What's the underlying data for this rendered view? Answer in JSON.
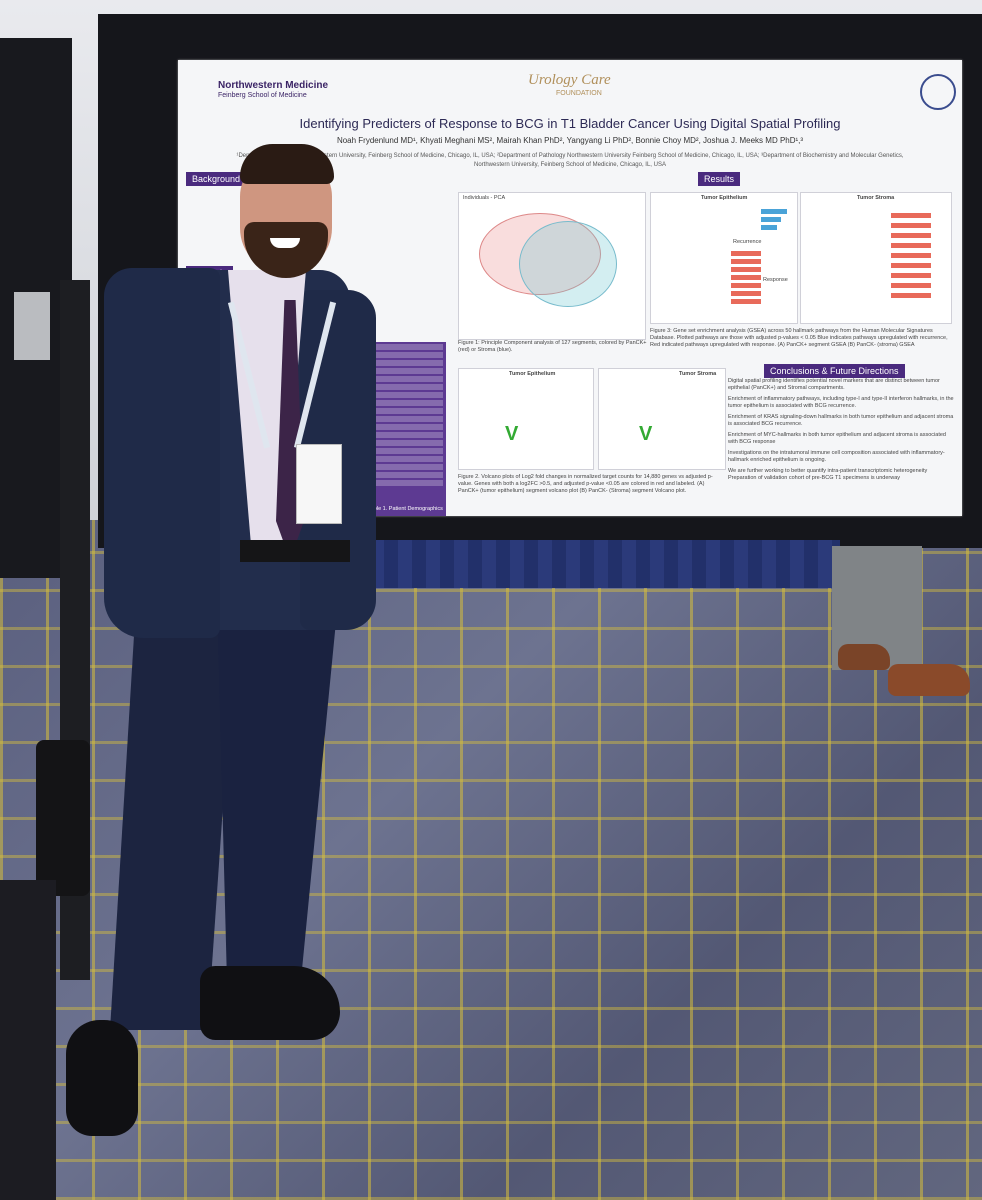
{
  "scene": {
    "description_colors": {
      "carpet": "#5a5f7e",
      "carpet_pattern": "#d6be3c",
      "board": "#15161b",
      "poster_accent": "#4a2a7e"
    }
  },
  "poster": {
    "logo": "Northwestern Medicine",
    "logo_sub": "Feinberg School of Medicine",
    "foundation": "Urology Care",
    "foundation_sub": "FOUNDATION",
    "title": "Identifying Predicters of Response to BCG in T1 Bladder Cancer Using Digital Spatial Profiling",
    "authors": "Noah Frydenlund MD¹, Khyati Meghani MS², Mairah Khan PhD², Yangyang Li PhD², Bonnie Choy MD², Joshua J. Meeks MD PhD¹,³",
    "affiliation_1": "¹Department of Urology, Northwestern University, Feinberg School of Medicine, Chicago, IL, USA; ²Department of Pathology Northwestern University Feinberg School of Medicine, Chicago, IL, USA; ³Department of Biochemistry and Molecular Genetics,",
    "affiliation_2": "Northwestern University, Feinberg School of Medicine, Chicago, IL, USA",
    "background_heading": "Background",
    "methods_heading": "Methods",
    "results_heading": "Results",
    "pca_label": "Individuals - PCA",
    "fig1_caption": "Figure 1: Principle Component analysis of 127 segments, colored by PanCK+ (red) or Stroma (blue).",
    "tumor_epithelium": "Tumor Epithelium",
    "tumor_stroma": "Tumor Stroma",
    "recurrence": "Recurrence",
    "response": "Response",
    "fig3_caption": "Figure 3: Gene set enrichment analysis (GSEA) across 50 hallmark pathways from the Human Molecular Signatures Database. Plotted pathways are those with adjusted p-values < 0.05 Blue indicates pathways upregulated with recurrence, Red indicated pathways upregulated with response. (A) PanCK+ segment GSEA (B) PanCK- (stroma) GSEA",
    "fig2_caption": "Figure 2. Volcano plots of Log2 fold changes in normalized target counts for 14,880 genes vs adjusted p-value. Genes with both a log2FC >0.5, and adjusted p-value <0.05 are colored in red and labeled. (A) PanCK+ (tumor epithelium) segment volcano plot (B) PanCK- (Stroma) segment Volcano plot.",
    "table1_caption": "Table 1. Patient Demographics",
    "conclusions_heading": "Conclusions & Future Directions",
    "conclusions": [
      "Digital spatial profiling identifies potential novel markers that are distinct between tumor epithelial (PanCK+) and Stromal compartments.",
      "Enrichment of inflammatory pathways, including type-I and type-II interferon hallmarks, in the tumor epithelium is associated with BCG recurrence.",
      "Enrichment of KRAS signaling-down hallmarks in both tumor epithelium and adjacent stroma is associated BCG recurrence.",
      "Enrichment of MYC-hallmarks in both tumor epithelium and adjacent stroma is associated with BCG response",
      "Investigations on the intratumoral immune cell composition associated with inflammatory-hallmark enriched epithelium is ongoing.",
      "We are further working to better quantify intra-patient transcriptomic heterogeneity Preparation of validation cohort of pre-BCG T1 specimens is underway"
    ]
  }
}
